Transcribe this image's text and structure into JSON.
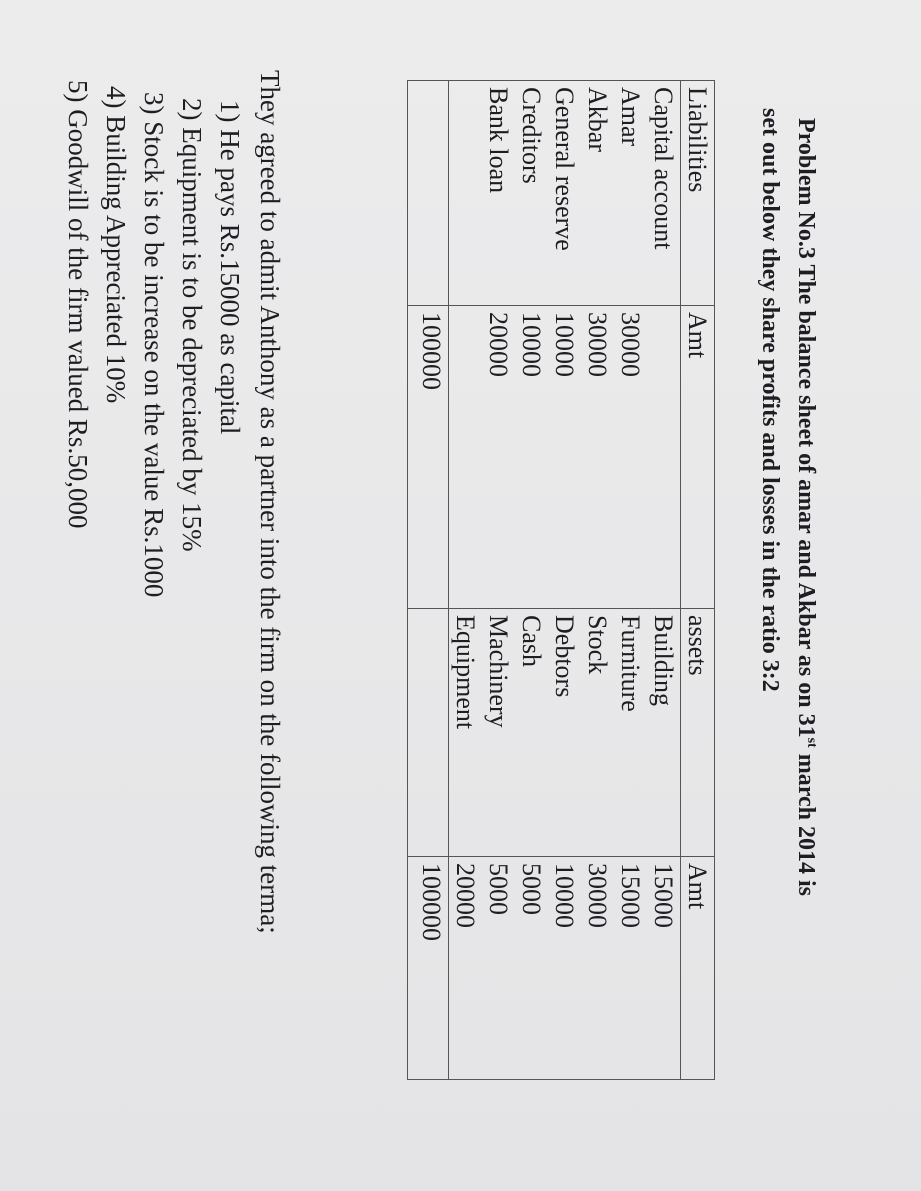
{
  "title": {
    "prefix": "Problem No.3 The balance sheet of amar and Akbar   as on 31",
    "sup": "st",
    "suffix": " march 2014 is"
  },
  "subtitle": "set out below they share profits and losses in the ratio 3:2",
  "table": {
    "headers": [
      "Liabilities",
      "Amt",
      "assets",
      "Amt"
    ],
    "liabilities": [
      "Capital account",
      "Amar",
      "Akbar",
      "General reserve",
      "Creditors",
      "Bank loan"
    ],
    "liab_amounts": [
      "",
      "30000",
      "30000",
      "10000",
      "10000",
      "20000"
    ],
    "assets": [
      "Building",
      "Furniture",
      "Stock",
      "Debtors",
      "Cash",
      "Machinery",
      "Equipment"
    ],
    "asset_amounts": [
      "15000",
      "15000",
      "30000",
      "10000",
      "5000",
      "5000",
      "20000"
    ],
    "totals": [
      "",
      "100000",
      "",
      "100000"
    ]
  },
  "intro": "They agreed to admit Anthony as a partner into the firm on the following terma;",
  "terms": [
    "1) He pays Rs.15000 as capital",
    "2) Equipment  is to be depreciated by 15%",
    "3) Stock is to be increase on the value Rs.1000",
    "4) Building Appreciated 10%",
    "5) Goodwill of the firm valued Rs.50,000"
  ]
}
